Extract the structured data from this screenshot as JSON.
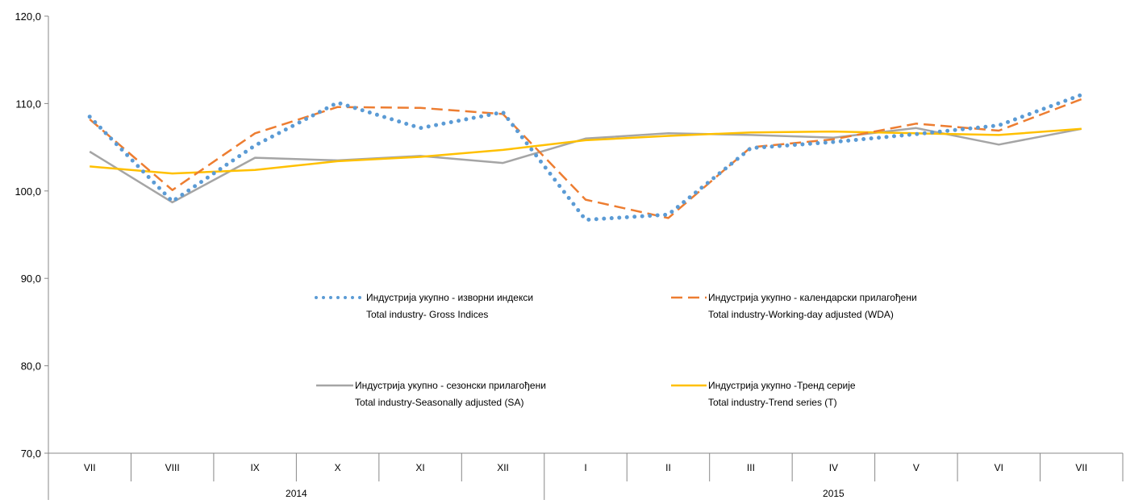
{
  "chart_data": {
    "type": "line",
    "categories": [
      "VII",
      "VIII",
      "IX",
      "X",
      "XI",
      "XII",
      "I",
      "II",
      "III",
      "IV",
      "V",
      "VI",
      "VII"
    ],
    "groups": [
      {
        "label": "2014",
        "span": 6
      },
      {
        "label": "2015",
        "span": 7
      }
    ],
    "ylim": [
      70,
      120
    ],
    "yticks": [
      "70,0",
      "80,0",
      "90,0",
      "100,0",
      "110,0",
      "120,0"
    ],
    "ytick_values": [
      70,
      80,
      90,
      100,
      110,
      120
    ],
    "grid": false,
    "legend_position": "inside-center",
    "series": [
      {
        "key": "gross",
        "name_line1": "Индустрија укупно - изворни индекси",
        "name_line2": "Total industry- Gross Indices",
        "color": "#5B9BD5",
        "style": "dotted",
        "values": [
          108.5,
          98.8,
          105.2,
          110.1,
          107.2,
          109.0,
          96.7,
          97.3,
          104.9,
          105.6,
          106.5,
          107.5,
          111.0
        ]
      },
      {
        "key": "wda",
        "name_line1": "Индустрија укупно - календарски прилагођени",
        "name_line2": "Total industry-Working-day adjusted (WDA)",
        "color": "#ED7D31",
        "style": "dashed",
        "values": [
          108.2,
          100.1,
          106.6,
          109.6,
          109.5,
          108.8,
          99.0,
          96.9,
          105.0,
          105.9,
          107.7,
          106.9,
          110.5
        ]
      },
      {
        "key": "sa",
        "name_line1": "Индустрија укупно - сезонски прилагођени",
        "name_line2": "Total industry-Seasonally adjusted (SA)",
        "color": "#A5A5A5",
        "style": "solid",
        "values": [
          104.5,
          98.7,
          103.8,
          103.5,
          104.0,
          103.2,
          106.0,
          106.6,
          106.4,
          106.1,
          107.2,
          105.3,
          107.1
        ]
      },
      {
        "key": "trend",
        "name_line1": "Индустрија укупно -Тренд серије",
        "name_line2": "Total industry-Trend series (T)",
        "color": "#FFC000",
        "style": "solid",
        "values": [
          102.8,
          102.0,
          102.4,
          103.4,
          103.9,
          104.7,
          105.8,
          106.3,
          106.7,
          106.8,
          106.6,
          106.4,
          107.1
        ]
      }
    ]
  }
}
